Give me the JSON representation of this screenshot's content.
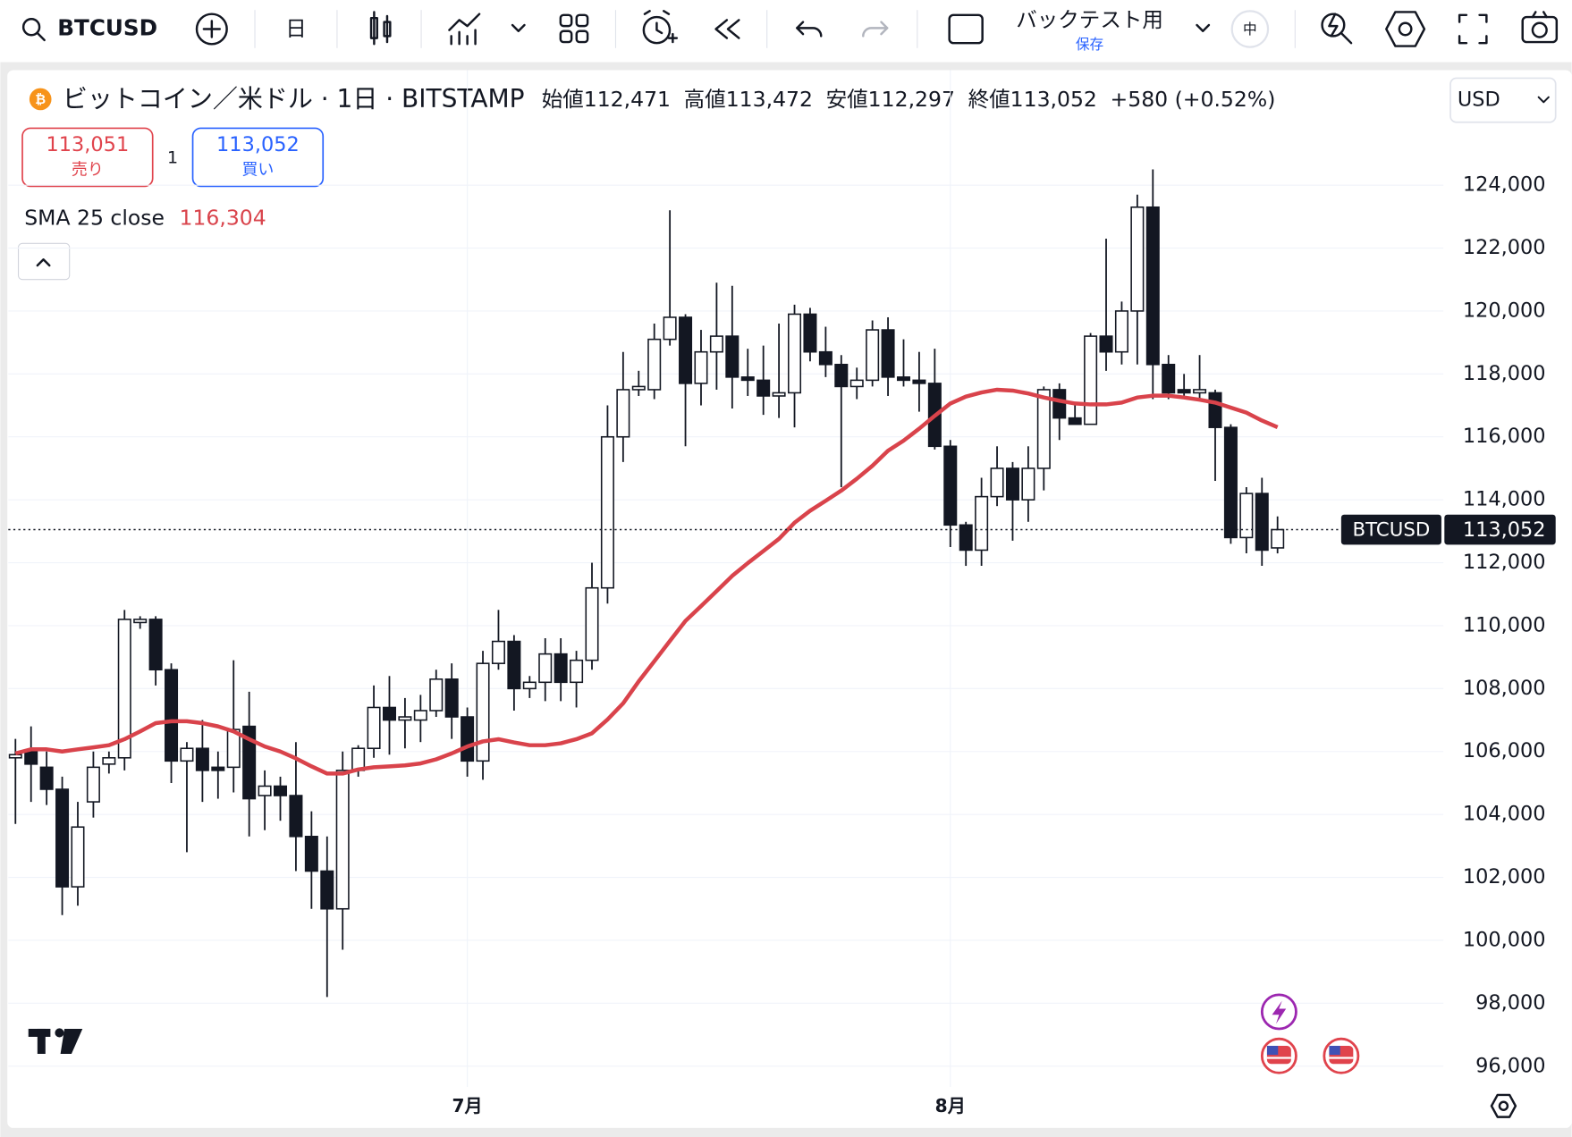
{
  "toolbar": {
    "symbol": "BTCUSD",
    "interval": "日",
    "layout_name": "バックテスト用",
    "layout_save": "保存",
    "size_badge": "中"
  },
  "header": {
    "instrument": "ビットコイン／米ドル · 1日 · BITSTAMP",
    "open_label": "始値",
    "open": "112,471",
    "high_label": "高値",
    "high": "113,472",
    "low_label": "安値",
    "low": "112,297",
    "close_label": "終値",
    "close": "113,052",
    "change": "+580 (+0.52%)",
    "currency": "USD"
  },
  "trade": {
    "sell_price": "113,051",
    "sell_label": "売り",
    "quantity": "1",
    "buy_price": "113,052",
    "buy_label": "買い"
  },
  "chart_data": {
    "type": "candlestick",
    "categories": [
      null,
      null,
      null,
      null,
      null,
      null,
      null,
      null,
      null,
      null,
      null,
      null,
      null,
      null,
      null,
      null,
      null,
      null,
      null,
      null,
      null,
      null,
      null,
      null,
      null,
      null,
      null,
      null,
      null,
      "7月",
      null,
      null,
      null,
      null,
      null,
      null,
      null,
      null,
      null,
      null,
      null,
      null,
      null,
      null,
      null,
      null,
      null,
      null,
      null,
      null,
      null,
      null,
      null,
      null,
      null,
      null,
      null,
      null,
      null,
      null,
      "8月",
      null,
      null,
      null,
      null,
      null,
      null,
      null,
      null,
      null,
      null,
      null,
      null,
      null,
      null,
      null,
      null,
      null,
      null,
      null,
      null,
      null
    ],
    "ohlc": {
      "open": [
        105800,
        106000,
        105500,
        104800,
        101700,
        104400,
        105600,
        105800,
        110100,
        110200,
        108600,
        105700,
        106100,
        105500,
        105500,
        106800,
        104600,
        104900,
        104600,
        103300,
        102200,
        101000,
        105400,
        106100,
        107400,
        107000,
        107000,
        107300,
        108300,
        107100,
        105700,
        108800,
        109500,
        108000,
        108200,
        109100,
        108200,
        108900,
        111200,
        116000,
        117500,
        117500,
        119100,
        119800,
        117700,
        118700,
        119200,
        117900,
        117800,
        117300,
        117400,
        119900,
        118700,
        118300,
        117600,
        117800,
        119400,
        117900,
        117800,
        117700,
        115700,
        113200,
        112400,
        114100,
        115000,
        114000,
        115000,
        117500,
        116600,
        116400,
        119200,
        118700,
        120000,
        123300,
        118300,
        117500,
        117400,
        117400,
        116300,
        112800,
        114200,
        112471
      ],
      "high": [
        106400,
        106800,
        106000,
        105200,
        104400,
        106000,
        106000,
        110500,
        110300,
        110300,
        108800,
        106300,
        107000,
        106000,
        108900,
        107900,
        105400,
        105200,
        106300,
        104100,
        103300,
        106000,
        106200,
        108100,
        108400,
        107700,
        107800,
        108600,
        108800,
        107400,
        109200,
        110500,
        109700,
        108400,
        109600,
        109600,
        109200,
        112000,
        117000,
        118700,
        118100,
        119600,
        123200,
        119900,
        119400,
        120900,
        120800,
        118800,
        118900,
        119600,
        120200,
        120100,
        119500,
        118600,
        118200,
        119700,
        119800,
        119100,
        118700,
        118800,
        115900,
        113300,
        114700,
        115700,
        115200,
        115700,
        117600,
        117700,
        117100,
        119300,
        122300,
        120300,
        123700,
        124500,
        118600,
        118000,
        118600,
        117500,
        116400,
        114400,
        114700,
        113472
      ],
      "low": [
        103700,
        104400,
        104300,
        100800,
        101100,
        103900,
        105300,
        105400,
        109900,
        108100,
        105000,
        102800,
        104400,
        104500,
        104700,
        103300,
        103500,
        103800,
        102200,
        101000,
        98200,
        99700,
        105200,
        105800,
        105900,
        106100,
        106300,
        107100,
        106400,
        105200,
        105100,
        108600,
        107300,
        107700,
        107600,
        107600,
        107400,
        108600,
        110700,
        115200,
        117300,
        117200,
        118900,
        115700,
        117000,
        117500,
        116900,
        117300,
        116700,
        116600,
        116300,
        118400,
        117900,
        114400,
        117200,
        117600,
        117300,
        117600,
        116800,
        115600,
        112500,
        111900,
        111900,
        113800,
        112700,
        113300,
        114300,
        115900,
        116400,
        116400,
        118100,
        118300,
        118300,
        117200,
        117200,
        117200,
        117200,
        114600,
        112600,
        112300,
        111900,
        112297
      ],
      "close": [
        105900,
        105600,
        104800,
        101700,
        103600,
        105500,
        105800,
        110200,
        110200,
        108600,
        105700,
        106100,
        105400,
        105400,
        106700,
        104500,
        104900,
        104600,
        103300,
        102200,
        101000,
        105400,
        106100,
        107400,
        107000,
        107100,
        107300,
        108300,
        107100,
        105700,
        108800,
        109500,
        108000,
        108200,
        109100,
        108200,
        108900,
        111200,
        116000,
        117500,
        117600,
        119100,
        119800,
        117700,
        118700,
        119200,
        117900,
        117800,
        117300,
        117400,
        119900,
        118700,
        118300,
        117600,
        117800,
        119400,
        117900,
        117800,
        117700,
        115700,
        113200,
        112400,
        114100,
        115000,
        114000,
        115000,
        117500,
        116600,
        116400,
        119200,
        118700,
        120000,
        123300,
        118300,
        117400,
        117400,
        117500,
        116300,
        112800,
        114200,
        112400,
        113052
      ]
    },
    "up_color": "#ffffff",
    "down_color": "#131722",
    "sma": {
      "name": "SMA 25 close",
      "color": "#d9434b",
      "value_label": "116,304",
      "values": [
        105940,
        106070,
        106070,
        106000,
        106070,
        106130,
        106200,
        106390,
        106640,
        106900,
        106960,
        106960,
        106900,
        106800,
        106640,
        106390,
        106160,
        106000,
        105780,
        105530,
        105300,
        105300,
        105430,
        105500,
        105530,
        105560,
        105620,
        105750,
        105940,
        106160,
        106320,
        106390,
        106290,
        106200,
        106200,
        106260,
        106390,
        106580,
        107020,
        107530,
        108230,
        108870,
        109510,
        110150,
        110620,
        111100,
        111580,
        111990,
        112370,
        112760,
        113270,
        113650,
        113970,
        114290,
        114670,
        115080,
        115560,
        115880,
        116260,
        116670,
        117060,
        117280,
        117410,
        117500,
        117470,
        117380,
        117250,
        117150,
        117060,
        117030,
        117030,
        117090,
        117250,
        117310,
        117310,
        117250,
        117180,
        117090,
        116930,
        116770,
        116520,
        116304
      ]
    },
    "last_price_label": "113,052",
    "ylim": [
      95500,
      126000
    ],
    "yticks": [
      {
        "value": 96000,
        "label": "96,000"
      },
      {
        "value": 98000,
        "label": "98,000"
      },
      {
        "value": 100000,
        "label": "100,000"
      },
      {
        "value": 102000,
        "label": "102,000"
      },
      {
        "value": 104000,
        "label": "104,000"
      },
      {
        "value": 106000,
        "label": "106,000"
      },
      {
        "value": 108000,
        "label": "108,000"
      },
      {
        "value": 110000,
        "label": "110,000"
      },
      {
        "value": 112000,
        "label": "112,000"
      },
      {
        "value": 114000,
        "label": "114,000"
      },
      {
        "value": 116000,
        "label": "116,000"
      },
      {
        "value": 118000,
        "label": "118,000"
      },
      {
        "value": 120000,
        "label": "120,000"
      },
      {
        "value": 122000,
        "label": "122,000"
      },
      {
        "value": 124000,
        "label": "124,000"
      }
    ],
    "grid": true
  }
}
